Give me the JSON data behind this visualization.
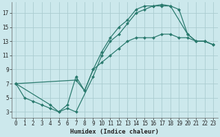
{
  "xlabel": "Humidex (Indice chaleur)",
  "bg_color": "#cce8ec",
  "grid_color": "#aaccd0",
  "line_color": "#2a7a6e",
  "xlim": [
    -0.5,
    23.5
  ],
  "ylim": [
    2.2,
    18.5
  ],
  "xticks": [
    0,
    1,
    2,
    3,
    4,
    5,
    6,
    7,
    8,
    9,
    10,
    11,
    12,
    13,
    14,
    15,
    16,
    17,
    18,
    19,
    20,
    21,
    22,
    23
  ],
  "yticks": [
    3,
    5,
    7,
    9,
    11,
    13,
    15,
    17
  ],
  "line1_x": [
    0,
    1,
    2,
    3,
    4,
    5,
    6,
    7,
    9,
    10,
    11,
    12,
    13,
    14,
    15,
    16,
    17,
    18,
    19,
    20,
    21,
    22,
    23
  ],
  "line1_y": [
    7,
    5,
    4.5,
    4,
    3.5,
    3.0,
    3.5,
    3.0,
    8.0,
    11.0,
    13.0,
    14.0,
    15.5,
    17.0,
    17.5,
    18.0,
    18.0,
    18.0,
    17.5,
    14.0,
    13.0,
    13.0,
    12.5
  ],
  "line2_x": [
    0,
    7,
    8,
    9,
    10,
    11,
    12,
    13,
    14,
    15,
    16,
    17,
    18,
    20,
    21,
    22,
    23
  ],
  "line2_y": [
    7,
    7.5,
    6.0,
    9.0,
    11.5,
    13.5,
    15.0,
    16.0,
    17.5,
    18.0,
    18.0,
    18.2,
    18.0,
    14.0,
    13.0,
    13.0,
    12.5
  ],
  "line3_x": [
    0,
    4,
    5,
    6,
    7,
    8,
    9,
    10,
    11,
    12,
    13,
    14,
    15,
    16,
    17,
    18,
    19,
    20,
    21,
    22,
    23
  ],
  "line3_y": [
    7,
    4.0,
    3.0,
    4.0,
    8.0,
    6.0,
    9.0,
    10.0,
    11.0,
    12.0,
    13.0,
    13.5,
    13.5,
    13.5,
    14.0,
    14.0,
    13.5,
    13.5,
    13.0,
    13.0,
    12.5
  ]
}
